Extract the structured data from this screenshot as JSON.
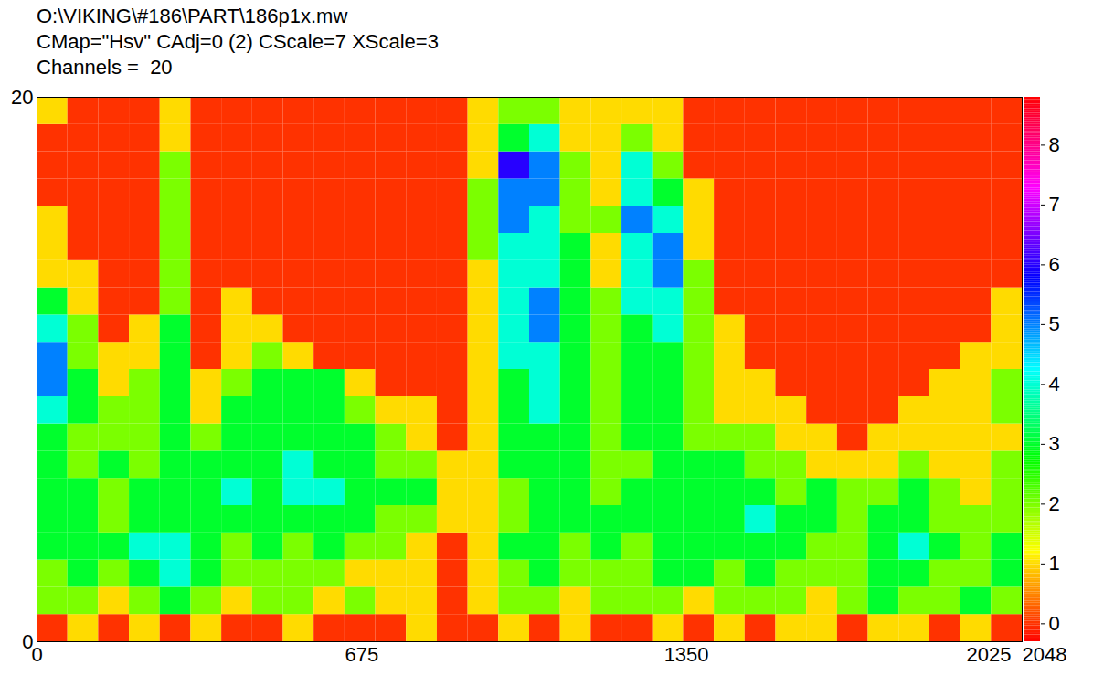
{
  "chart_data": {
    "type": "heatmap",
    "title": "O:\\VIKING\\#186\\PART\\186p1x.mw",
    "subtitle": [
      "CMap=\"Hsv\" CAdj=0 (2) CScale=7 XScale=3",
      "Channels =  20"
    ],
    "xlim": [
      0,
      2048
    ],
    "xticks": [
      0,
      675,
      1350,
      2025,
      2048
    ],
    "ylim": [
      0,
      20
    ],
    "yticks": [
      0,
      20
    ],
    "x_bins": [
      0,
      64,
      128,
      192,
      256,
      320,
      384,
      448,
      512,
      576,
      640,
      704,
      768,
      832,
      896,
      960,
      1024,
      1088,
      1152,
      1216,
      1280,
      1344,
      1408,
      1472,
      1536,
      1600,
      1664,
      1728,
      1792,
      1856,
      1920,
      1984,
      2048
    ],
    "y_bins": [
      0,
      1,
      2,
      3,
      4,
      5,
      6,
      7,
      8,
      9,
      10,
      11,
      12,
      13,
      14,
      15,
      16,
      17,
      18,
      19,
      20
    ],
    "cells": [
      [
        0,
        1,
        0,
        1,
        0,
        1,
        0,
        0,
        1,
        0,
        0,
        0,
        1,
        0,
        0,
        1,
        0,
        1,
        0,
        0,
        1,
        0,
        1,
        0,
        1,
        1,
        0,
        1,
        1,
        0,
        1,
        0
      ],
      [
        2,
        2,
        1,
        2,
        3,
        2,
        1,
        2,
        2,
        1,
        2,
        1,
        1,
        0,
        1,
        2,
        2,
        1,
        2,
        2,
        2,
        1,
        2,
        2,
        2,
        1,
        2,
        3,
        2,
        2,
        3,
        2
      ],
      [
        2,
        3,
        2,
        3,
        4,
        3,
        2,
        2,
        2,
        2,
        1,
        1,
        1,
        0,
        1,
        2,
        3,
        2,
        2,
        2,
        3,
        3,
        2,
        3,
        2,
        2,
        2,
        3,
        3,
        2,
        2,
        3
      ],
      [
        3,
        3,
        3,
        4,
        4,
        3,
        2,
        3,
        2,
        3,
        2,
        2,
        1,
        0,
        1,
        3,
        3,
        2,
        3,
        2,
        3,
        3,
        3,
        3,
        3,
        2,
        2,
        3,
        4,
        3,
        2,
        3
      ],
      [
        3,
        3,
        2,
        3,
        3,
        3,
        3,
        3,
        3,
        3,
        3,
        2,
        2,
        1,
        1,
        2,
        3,
        3,
        3,
        3,
        3,
        3,
        3,
        4,
        3,
        3,
        2,
        3,
        3,
        2,
        2,
        2
      ],
      [
        3,
        3,
        2,
        3,
        3,
        3,
        4,
        3,
        4,
        4,
        3,
        3,
        3,
        1,
        1,
        2,
        3,
        3,
        2,
        3,
        3,
        3,
        3,
        3,
        2,
        3,
        2,
        2,
        3,
        2,
        1,
        2
      ],
      [
        3,
        2,
        3,
        2,
        3,
        3,
        3,
        3,
        4,
        3,
        3,
        2,
        2,
        1,
        1,
        3,
        3,
        3,
        2,
        2,
        3,
        3,
        3,
        2,
        2,
        1,
        1,
        1,
        2,
        1,
        1,
        2
      ],
      [
        3,
        2,
        2,
        2,
        3,
        2,
        3,
        3,
        3,
        3,
        3,
        2,
        1,
        0,
        1,
        3,
        3,
        3,
        2,
        3,
        3,
        2,
        2,
        2,
        1,
        1,
        0,
        1,
        1,
        1,
        1,
        1
      ],
      [
        4,
        3,
        2,
        2,
        3,
        1,
        3,
        3,
        3,
        3,
        2,
        1,
        1,
        0,
        1,
        3,
        4,
        3,
        2,
        3,
        3,
        2,
        1,
        1,
        1,
        0,
        0,
        0,
        1,
        1,
        1,
        2
      ],
      [
        5,
        3,
        1,
        2,
        3,
        1,
        2,
        3,
        3,
        3,
        1,
        0,
        0,
        0,
        1,
        3,
        4,
        3,
        2,
        3,
        3,
        2,
        1,
        1,
        0,
        0,
        0,
        0,
        0,
        1,
        1,
        2
      ],
      [
        5,
        2,
        1,
        1,
        3,
        0,
        1,
        2,
        1,
        0,
        0,
        0,
        0,
        0,
        1,
        4,
        4,
        3,
        2,
        3,
        3,
        2,
        1,
        0,
        0,
        0,
        0,
        0,
        0,
        0,
        1,
        1
      ],
      [
        4,
        2,
        0,
        1,
        3,
        0,
        1,
        1,
        0,
        0,
        0,
        0,
        0,
        0,
        1,
        4,
        5,
        3,
        2,
        3,
        4,
        2,
        1,
        0,
        0,
        0,
        0,
        0,
        0,
        0,
        0,
        1
      ],
      [
        3,
        1,
        0,
        0,
        2,
        0,
        1,
        0,
        0,
        0,
        0,
        0,
        0,
        0,
        1,
        4,
        5,
        3,
        2,
        4,
        4,
        2,
        0,
        0,
        0,
        0,
        0,
        0,
        0,
        0,
        0,
        1
      ],
      [
        1,
        1,
        0,
        0,
        2,
        0,
        0,
        0,
        0,
        0,
        0,
        0,
        0,
        0,
        1,
        4,
        4,
        3,
        1,
        4,
        5,
        2,
        0,
        0,
        0,
        0,
        0,
        0,
        0,
        0,
        0,
        0
      ],
      [
        1,
        0,
        0,
        0,
        2,
        0,
        0,
        0,
        0,
        0,
        0,
        0,
        0,
        0,
        2,
        4,
        4,
        3,
        1,
        4,
        5,
        1,
        0,
        0,
        0,
        0,
        0,
        0,
        0,
        0,
        0,
        0
      ],
      [
        1,
        0,
        0,
        0,
        2,
        0,
        0,
        0,
        0,
        0,
        0,
        0,
        0,
        0,
        2,
        5,
        4,
        2,
        2,
        5,
        4,
        1,
        0,
        0,
        0,
        0,
        0,
        0,
        0,
        0,
        0,
        0
      ],
      [
        0,
        0,
        0,
        0,
        2,
        0,
        0,
        0,
        0,
        0,
        0,
        0,
        0,
        0,
        2,
        5,
        5,
        2,
        1,
        4,
        3,
        1,
        0,
        0,
        0,
        0,
        0,
        0,
        0,
        0,
        0,
        0
      ],
      [
        0,
        0,
        0,
        0,
        2,
        0,
        0,
        0,
        0,
        0,
        0,
        0,
        0,
        0,
        1,
        6,
        5,
        2,
        1,
        4,
        2,
        0,
        0,
        0,
        0,
        0,
        0,
        0,
        0,
        0,
        0,
        0
      ],
      [
        0,
        0,
        0,
        0,
        1,
        0,
        0,
        0,
        0,
        0,
        0,
        0,
        0,
        0,
        1,
        3,
        4,
        1,
        1,
        2,
        1,
        0,
        0,
        0,
        0,
        0,
        0,
        0,
        0,
        0,
        0,
        0
      ],
      [
        1,
        0,
        0,
        0,
        1,
        0,
        0,
        0,
        0,
        0,
        0,
        0,
        0,
        0,
        1,
        2,
        2,
        1,
        1,
        1,
        1,
        0,
        0,
        0,
        0,
        0,
        0,
        0,
        0,
        0,
        0,
        0
      ]
    ],
    "colorbar_range": [
      -0.3,
      8.8
    ],
    "colorbar_ticks": [
      0,
      1,
      2,
      3,
      4,
      5,
      6,
      7,
      8
    ],
    "grid": false
  }
}
